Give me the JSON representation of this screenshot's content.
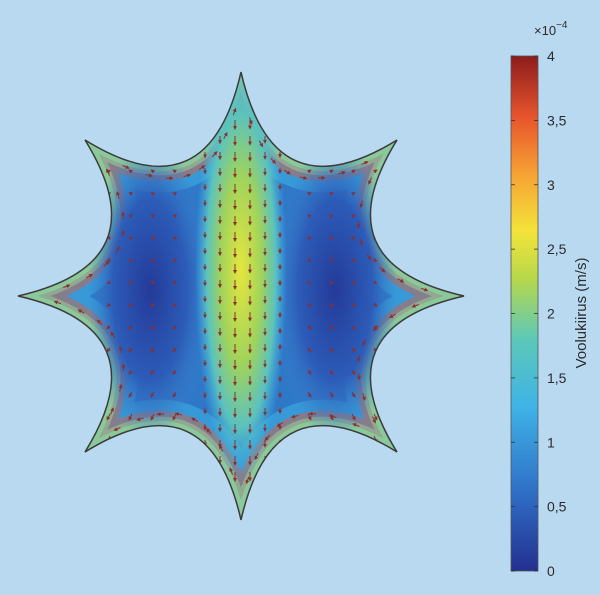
{
  "chart_data": {
    "type": "heatmap",
    "title": "",
    "xlabel": "",
    "ylabel": "",
    "colorbar": {
      "label": "Voolukiirus (m/s)",
      "multiplier": "×10",
      "exponent": "−4",
      "range": [
        0,
        4
      ],
      "ticks": [
        0,
        0.5,
        1,
        1.5,
        2,
        2.5,
        3,
        3.5,
        4
      ],
      "tick_labels": [
        "0",
        "0,5",
        "1",
        "1,5",
        "2",
        "2,5",
        "3",
        "3,5",
        "4"
      ],
      "colormap": [
        "#232f8f",
        "#2f6ec6",
        "#3fb3e6",
        "#5cc8b8",
        "#b8d84a",
        "#f4e33a",
        "#f6a233",
        "#e8552d",
        "#8c1c1c"
      ]
    },
    "domain_shape": "eight-pointed star with concave edges",
    "field_description": "velocity magnitude; highest along the concave outer walls and in a vertical central band, lowest in two side lobes",
    "vector_field": {
      "central_column": "downward arrows",
      "outer_edges": "arrows follow the boundary"
    }
  }
}
